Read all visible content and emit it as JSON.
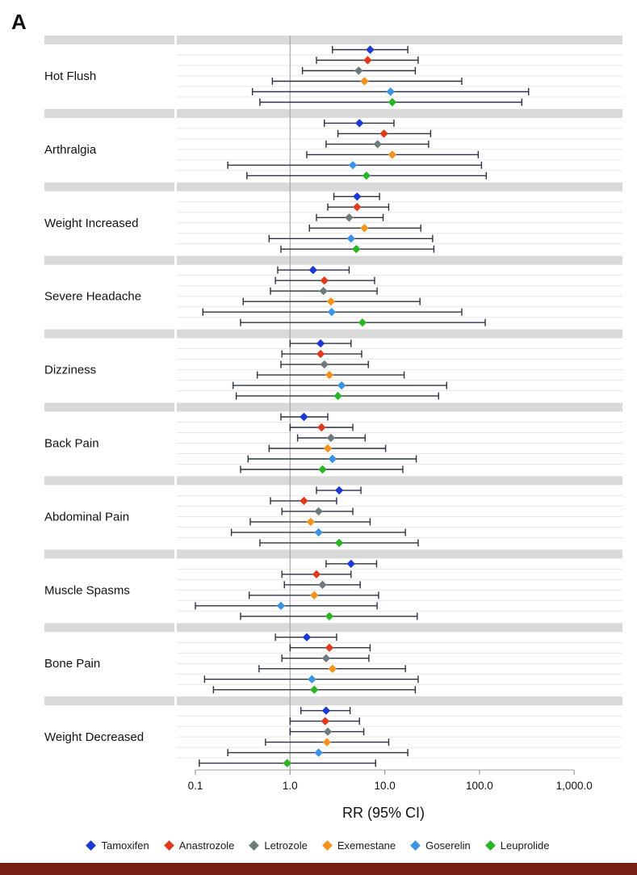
{
  "panel_label": "A",
  "colors": {
    "band": "#d9d9d9",
    "row_line": "#e6e6e6",
    "ref_line": "#a8a8a8",
    "whisker": "#2b3140",
    "bottom_bar": "#7a1f13"
  },
  "chart_data": {
    "type": "forest",
    "xlabel": "RR (95% CI)",
    "xscale": "log",
    "xlim": [
      0.1,
      1000
    ],
    "xticks": [
      0.1,
      1,
      10,
      100,
      1000
    ],
    "xtick_labels": [
      "0.1",
      "1.0",
      "10.0",
      "100.0",
      "1,000.0"
    ],
    "reference_line": 1,
    "legend_position": "bottom",
    "series": [
      {
        "name": "Tamoxifen",
        "color": "#1c39d4"
      },
      {
        "name": "Anastrozole",
        "color": "#e03a1e"
      },
      {
        "name": "Letrozole",
        "color": "#6f7a7d"
      },
      {
        "name": "Exemestane",
        "color": "#f5921e"
      },
      {
        "name": "Goserelin",
        "color": "#3a93e8"
      },
      {
        "name": "Leuprolide",
        "color": "#2bb526"
      }
    ],
    "categories": [
      {
        "name": "Hot Flush",
        "estimates": [
          {
            "rr": 7.0,
            "lo": 2.8,
            "hi": 17.5
          },
          {
            "rr": 6.6,
            "lo": 1.9,
            "hi": 22.5
          },
          {
            "rr": 5.3,
            "lo": 1.35,
            "hi": 21.0
          },
          {
            "rr": 6.1,
            "lo": 0.65,
            "hi": 65.0
          },
          {
            "rr": 11.5,
            "lo": 0.4,
            "hi": 330.0
          },
          {
            "rr": 12.0,
            "lo": 0.48,
            "hi": 280.0
          }
        ]
      },
      {
        "name": "Arthralgia",
        "estimates": [
          {
            "rr": 5.4,
            "lo": 2.3,
            "hi": 12.5
          },
          {
            "rr": 9.8,
            "lo": 3.2,
            "hi": 30.5
          },
          {
            "rr": 8.4,
            "lo": 2.4,
            "hi": 29.0
          },
          {
            "rr": 12.0,
            "lo": 1.5,
            "hi": 97.0
          },
          {
            "rr": 4.6,
            "lo": 0.22,
            "hi": 105.0
          },
          {
            "rr": 6.4,
            "lo": 0.35,
            "hi": 118.0
          }
        ]
      },
      {
        "name": "Weight Increased",
        "estimates": [
          {
            "rr": 5.1,
            "lo": 2.9,
            "hi": 8.8
          },
          {
            "rr": 5.1,
            "lo": 2.5,
            "hi": 11.0
          },
          {
            "rr": 4.2,
            "lo": 1.9,
            "hi": 9.6
          },
          {
            "rr": 6.1,
            "lo": 1.6,
            "hi": 24.0
          },
          {
            "rr": 4.4,
            "lo": 0.6,
            "hi": 32.0
          },
          {
            "rr": 5.0,
            "lo": 0.8,
            "hi": 33.0
          }
        ]
      },
      {
        "name": "Severe Headache",
        "estimates": [
          {
            "rr": 1.75,
            "lo": 0.74,
            "hi": 4.2
          },
          {
            "rr": 2.3,
            "lo": 0.7,
            "hi": 7.8
          },
          {
            "rr": 2.25,
            "lo": 0.62,
            "hi": 8.3
          },
          {
            "rr": 2.7,
            "lo": 0.32,
            "hi": 23.5
          },
          {
            "rr": 2.75,
            "lo": 0.12,
            "hi": 65.0
          },
          {
            "rr": 5.8,
            "lo": 0.3,
            "hi": 115.0
          }
        ]
      },
      {
        "name": "Dizziness",
        "estimates": [
          {
            "rr": 2.1,
            "lo": 1.0,
            "hi": 4.4
          },
          {
            "rr": 2.1,
            "lo": 0.82,
            "hi": 5.7
          },
          {
            "rr": 2.3,
            "lo": 0.8,
            "hi": 6.7
          },
          {
            "rr": 2.6,
            "lo": 0.45,
            "hi": 16.0
          },
          {
            "rr": 3.5,
            "lo": 0.25,
            "hi": 45.0
          },
          {
            "rr": 3.2,
            "lo": 0.27,
            "hi": 37.0
          }
        ]
      },
      {
        "name": "Back Pain",
        "estimates": [
          {
            "rr": 1.4,
            "lo": 0.8,
            "hi": 2.5
          },
          {
            "rr": 2.15,
            "lo": 1.0,
            "hi": 4.6
          },
          {
            "rr": 2.7,
            "lo": 1.2,
            "hi": 6.2
          },
          {
            "rr": 2.5,
            "lo": 0.6,
            "hi": 10.2
          },
          {
            "rr": 2.8,
            "lo": 0.36,
            "hi": 21.5
          },
          {
            "rr": 2.2,
            "lo": 0.3,
            "hi": 15.5
          }
        ]
      },
      {
        "name": "Abdominal Pain",
        "estimates": [
          {
            "rr": 3.3,
            "lo": 1.9,
            "hi": 5.6
          },
          {
            "rr": 1.4,
            "lo": 0.62,
            "hi": 3.1
          },
          {
            "rr": 2.0,
            "lo": 0.82,
            "hi": 4.6
          },
          {
            "rr": 1.65,
            "lo": 0.38,
            "hi": 7.0
          },
          {
            "rr": 2.0,
            "lo": 0.24,
            "hi": 16.5
          },
          {
            "rr": 3.3,
            "lo": 0.48,
            "hi": 22.5
          }
        ]
      },
      {
        "name": "Muscle Spasms",
        "estimates": [
          {
            "rr": 4.4,
            "lo": 2.4,
            "hi": 8.2
          },
          {
            "rr": 1.9,
            "lo": 0.82,
            "hi": 4.4
          },
          {
            "rr": 2.2,
            "lo": 0.87,
            "hi": 5.5
          },
          {
            "rr": 1.8,
            "lo": 0.37,
            "hi": 8.6
          },
          {
            "rr": 0.8,
            "lo": 0.1,
            "hi": 8.3
          },
          {
            "rr": 2.6,
            "lo": 0.3,
            "hi": 22.0
          }
        ]
      },
      {
        "name": "Bone Pain",
        "estimates": [
          {
            "rr": 1.5,
            "lo": 0.7,
            "hi": 3.1
          },
          {
            "rr": 2.6,
            "lo": 1.0,
            "hi": 7.0
          },
          {
            "rr": 2.4,
            "lo": 0.82,
            "hi": 6.8
          },
          {
            "rr": 2.8,
            "lo": 0.47,
            "hi": 16.5
          },
          {
            "rr": 1.7,
            "lo": 0.125,
            "hi": 22.5
          },
          {
            "rr": 1.8,
            "lo": 0.155,
            "hi": 21.0
          }
        ]
      },
      {
        "name": "Weight Decreased",
        "estimates": [
          {
            "rr": 2.4,
            "lo": 1.3,
            "hi": 4.3
          },
          {
            "rr": 2.35,
            "lo": 1.0,
            "hi": 5.4
          },
          {
            "rr": 2.5,
            "lo": 1.0,
            "hi": 6.0
          },
          {
            "rr": 2.45,
            "lo": 0.55,
            "hi": 11.0
          },
          {
            "rr": 2.0,
            "lo": 0.22,
            "hi": 17.5
          },
          {
            "rr": 0.93,
            "lo": 0.11,
            "hi": 8.0
          }
        ]
      }
    ]
  }
}
